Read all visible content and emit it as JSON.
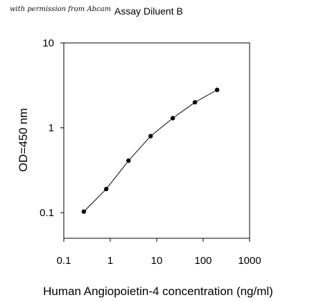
{
  "header": {
    "permission_note": "with permission from Abcam",
    "title": "Assay Diluent B"
  },
  "chart_data": {
    "type": "line",
    "title": "Assay Diluent B",
    "xlabel": "Human Angiopoietin-4 concentration (ng/ml)",
    "ylabel": "OD=450 nm",
    "xscale": "log",
    "yscale": "log",
    "xlim": [
      0.1,
      1000
    ],
    "ylim": [
      0.05,
      10
    ],
    "xticks": [
      0.1,
      1,
      10,
      100,
      1000
    ],
    "xtick_labels": [
      "0.1",
      "1",
      "10",
      "100",
      "1000"
    ],
    "yticks": [
      0.1,
      1,
      10
    ],
    "ytick_labels": [
      "0.1",
      "1",
      "10"
    ],
    "grid": false,
    "series": [
      {
        "x": [
          0.27,
          0.82,
          2.47,
          7.41,
          22.2,
          66.7,
          200
        ],
        "y": [
          0.103,
          0.19,
          0.41,
          0.8,
          1.3,
          2.0,
          2.8
        ]
      }
    ],
    "colors": {
      "line": "#000000",
      "marker": "#000000"
    }
  }
}
